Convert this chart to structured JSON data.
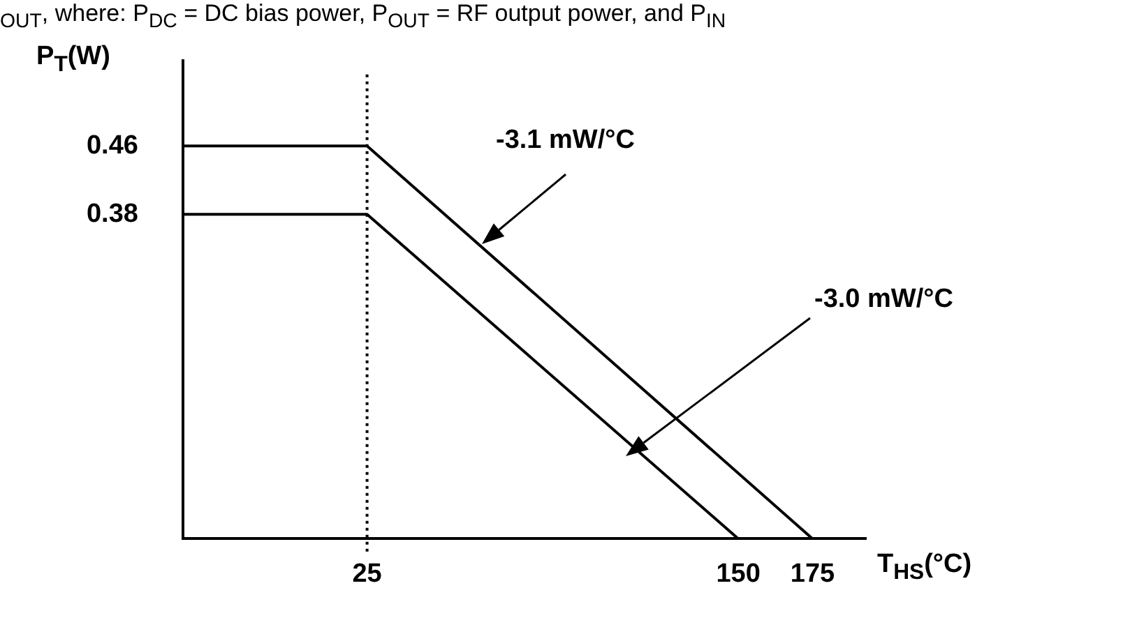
{
  "chart_data": {
    "type": "line",
    "subtitle": "$_{OUT}$, where: P$_{DC}$ = DC bias power, P$_{OUT}$ = RF output power, and P$_{IN}$",
    "xlabel": "T$_{HS}$(°C)",
    "ylabel": "P$_{T}$(W)",
    "x": [
      -37,
      25,
      175
    ],
    "series": [
      {
        "color": "#000000",
        "values": [
          0.46,
          0.46,
          0
        ]
      },
      {
        "color": "#000000",
        "x": [
          -37,
          25,
          150
        ],
        "values": [
          0.38,
          0.38,
          0
        ]
      }
    ],
    "xlim": [
      -37,
      193
    ],
    "xticks": [
      25,
      150,
      175
    ],
    "ylim": [
      0,
      0.56
    ],
    "yticks": [
      0.38,
      0.46
    ],
    "ref_lines": [
      {
        "axis": "x",
        "value": 25,
        "line_style": "dotted",
        "color": "#000000"
      }
    ],
    "annotations": [
      "-3.1 mW/°C",
      "-3.0 mW/°C"
    ],
    "grid": false,
    "legend": false,
    "marker": "none",
    "line_style": "solid"
  }
}
